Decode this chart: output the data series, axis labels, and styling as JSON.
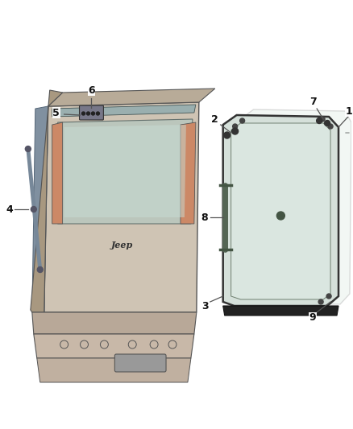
{
  "background_color": "#ffffff",
  "line_color": "#666666",
  "label_color": "#222222",
  "figsize": [
    4.38,
    5.33
  ],
  "dpi": 100,
  "liftgate": {
    "body_color": "#d4c8b8",
    "body_dark": "#b8a898",
    "body_side": "#c0b0a0",
    "glass_color": "#c8d8d0",
    "glass_alpha": 0.7,
    "interior_color": "#8899aa",
    "top_color": "#c8bca8"
  },
  "panel": {
    "glass_fill": "#d0ddd8",
    "glass_edge": "#445544",
    "seal_color": "#222222"
  }
}
